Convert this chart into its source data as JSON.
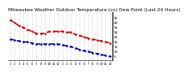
{
  "title": "Milwaukee Weather Outdoor Temperature (vs) Dew Point (Last 24 Hours)",
  "title_fontsize": 4.2,
  "background_color": "#ffffff",
  "temp_color": "#cc0000",
  "dew_color": "#0000bb",
  "grid_color": "#aaaaaa",
  "temp_values": [
    42,
    39,
    36,
    34,
    32,
    30,
    28,
    28,
    28,
    30,
    30,
    30,
    30,
    29,
    29,
    27,
    26,
    24,
    23,
    22,
    21,
    20,
    19,
    18
  ],
  "dew_values": [
    22,
    21,
    20,
    19,
    19,
    18,
    17,
    17,
    17,
    17,
    17,
    17,
    16,
    15,
    14,
    13,
    11,
    10,
    9,
    8,
    7,
    6,
    5,
    4
  ],
  "x_ticks_labels": [
    "1",
    "2",
    "3",
    "4",
    "5",
    "6",
    "7",
    "8",
    "9",
    "10",
    "11",
    "12",
    "1",
    "2",
    "3",
    "4",
    "5",
    "6",
    "7",
    "8",
    "9",
    "10",
    "11",
    "12"
  ],
  "ylim": [
    0,
    50
  ],
  "yticks_right": [
    5,
    10,
    15,
    20,
    25,
    30,
    35,
    40,
    45
  ],
  "ytick_fontsize": 3.0,
  "xtick_fontsize": 2.8
}
